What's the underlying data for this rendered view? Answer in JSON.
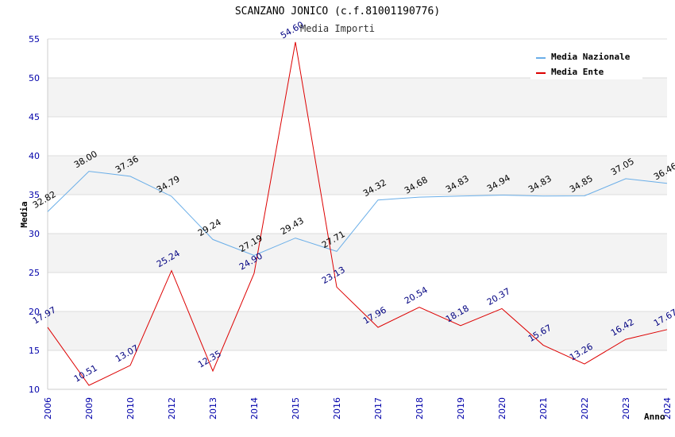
{
  "chart_data": {
    "type": "line",
    "title": "SCANZANO JONICO (c.f.81001190776)",
    "subtitle": "Media Importi",
    "xlabel": "Anno",
    "ylabel": "Media",
    "ylim": [
      10,
      55
    ],
    "yticks": [
      "10",
      "15",
      "20",
      "25",
      "30",
      "35",
      "40",
      "45",
      "50",
      "55"
    ],
    "categories": [
      "2006",
      "2009",
      "2010",
      "2012",
      "2013",
      "2014",
      "2015",
      "2016",
      "2017",
      "2018",
      "2019",
      "2020",
      "2021",
      "2022",
      "2023",
      "2024"
    ],
    "series": [
      {
        "name": "Media Nazionale",
        "color": "#6aaee8",
        "values": [
          32.82,
          38.0,
          37.36,
          34.79,
          29.24,
          27.19,
          29.43,
          27.71,
          34.32,
          34.68,
          34.83,
          34.94,
          34.83,
          34.85,
          37.05,
          36.46
        ],
        "labels": [
          "32.82",
          "38.00",
          "37.36",
          "34.79",
          "29.24",
          "27.19",
          "29.43",
          "27.71",
          "34.32",
          "34.68",
          "34.83",
          "34.94",
          "34.83",
          "34.85",
          "37.05",
          "36.46"
        ]
      },
      {
        "name": "Media Ente",
        "color": "#dd0000",
        "values": [
          17.97,
          10.51,
          13.07,
          25.24,
          12.35,
          24.9,
          54.6,
          23.13,
          17.96,
          20.54,
          18.18,
          20.37,
          15.67,
          13.26,
          16.42,
          17.67
        ],
        "labels": [
          "17.97",
          "10.51",
          "13.07",
          "25.24",
          "12.35",
          "24.90",
          "54.60",
          "23.13",
          "17.96",
          "20.54",
          "18.18",
          "20.37",
          "15.67",
          "13.26",
          "16.42",
          "17.67"
        ]
      }
    ],
    "grid": true,
    "legend_position": "top-right"
  }
}
